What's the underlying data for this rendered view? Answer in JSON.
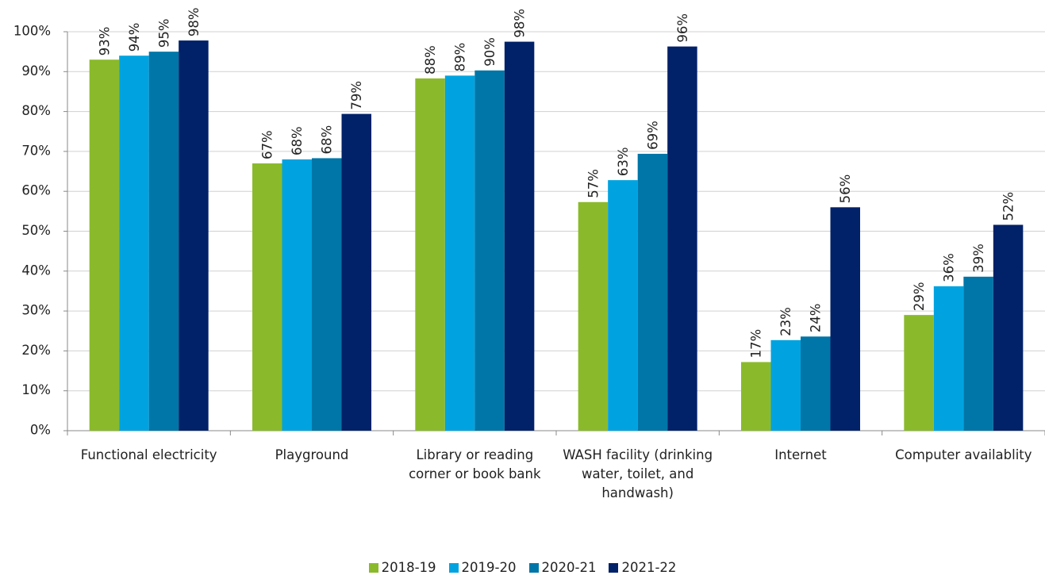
{
  "chart_data": {
    "type": "bar",
    "categories": [
      "Functional electricity",
      "Playground",
      "Library or reading corner or book bank",
      "WASH facility (drinking water, toilet, and handwash)",
      "Internet",
      "Computer availablity"
    ],
    "series": [
      {
        "name": "2018-19",
        "color": "#8aba2b",
        "values": [
          93,
          67,
          88.3,
          57.3,
          17.2,
          29
        ],
        "value_labels": [
          "93%",
          "67%",
          "88%",
          "57%",
          "17%",
          "29%"
        ]
      },
      {
        "name": "2019-20",
        "color": "#00a3e0",
        "values": [
          94,
          68,
          89,
          62.8,
          22.7,
          36.2
        ],
        "value_labels": [
          "94%",
          "68%",
          "89%",
          "63%",
          "23%",
          "36%"
        ]
      },
      {
        "name": "2020-21",
        "color": "#0076a8",
        "values": [
          95,
          68.3,
          90.3,
          69.4,
          23.6,
          38.6
        ],
        "value_labels": [
          "95%",
          "68%",
          "90%",
          "69%",
          "24%",
          "39%"
        ]
      },
      {
        "name": "2021-22",
        "color": "#012169",
        "values": [
          97.8,
          79.4,
          97.5,
          96.3,
          56,
          51.6
        ],
        "value_labels": [
          "98%",
          "79%",
          "98%",
          "96%",
          "56%",
          "52%"
        ]
      }
    ],
    "ylim": [
      0,
      100
    ],
    "yticks": [
      {
        "value": 0,
        "label": "0%"
      },
      {
        "value": 10,
        "label": "10%"
      },
      {
        "value": 20,
        "label": "20%"
      },
      {
        "value": 30,
        "label": "30%"
      },
      {
        "value": 40,
        "label": "40%"
      },
      {
        "value": 50,
        "label": "50%"
      },
      {
        "value": 60,
        "label": "60%"
      },
      {
        "value": 70,
        "label": "70%"
      },
      {
        "value": 80,
        "label": "80%"
      },
      {
        "value": 90,
        "label": "90%"
      },
      {
        "value": 100,
        "label": "100%"
      }
    ],
    "grid": true,
    "legend": "bottom"
  }
}
